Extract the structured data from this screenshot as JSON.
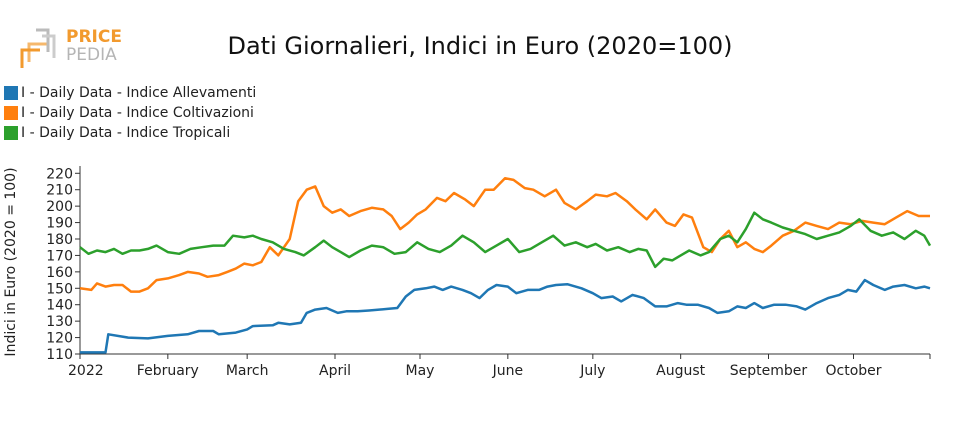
{
  "logo": {
    "line1": "PRICE",
    "line2": "PEDIA"
  },
  "chart_data": {
    "type": "line",
    "title": "Dati Giornalieri, Indici in Euro (2020=100)",
    "ylabel": "Indici in Euro (2020 = 100)",
    "xlabel": "",
    "ylim": [
      110,
      222
    ],
    "yticks": [
      110,
      120,
      130,
      140,
      150,
      160,
      170,
      180,
      190,
      200,
      210,
      220
    ],
    "xlim": [
      "2022-01-01",
      "2022-10-28"
    ],
    "xticks": [
      {
        "date": "2022-01-01",
        "label": "2022"
      },
      {
        "date": "2022-02-01",
        "label": "February"
      },
      {
        "date": "2022-03-01",
        "label": "March"
      },
      {
        "date": "2022-04-01",
        "label": "April"
      },
      {
        "date": "2022-05-01",
        "label": "May"
      },
      {
        "date": "2022-06-01",
        "label": "June"
      },
      {
        "date": "2022-07-01",
        "label": "July"
      },
      {
        "date": "2022-08-01",
        "label": "August"
      },
      {
        "date": "2022-09-01",
        "label": "September"
      },
      {
        "date": "2022-10-01",
        "label": "October"
      }
    ],
    "grid": false,
    "legend_position": "top-left",
    "series": [
      {
        "name": "I - Daily Data - Indice Allevamenti",
        "color": "#1f77b4",
        "points": [
          [
            "2022-01-01",
            111
          ],
          [
            "2022-01-10",
            111
          ],
          [
            "2022-01-11",
            122
          ],
          [
            "2022-01-18",
            120
          ],
          [
            "2022-01-25",
            119.5
          ],
          [
            "2022-02-01",
            121
          ],
          [
            "2022-02-08",
            122
          ],
          [
            "2022-02-12",
            124
          ],
          [
            "2022-02-17",
            124
          ],
          [
            "2022-02-19",
            122
          ],
          [
            "2022-02-25",
            123
          ],
          [
            "2022-03-01",
            125
          ],
          [
            "2022-03-03",
            127
          ],
          [
            "2022-03-10",
            127.5
          ],
          [
            "2022-03-12",
            129
          ],
          [
            "2022-03-16",
            128
          ],
          [
            "2022-03-20",
            129
          ],
          [
            "2022-03-22",
            135
          ],
          [
            "2022-03-25",
            137
          ],
          [
            "2022-03-29",
            138
          ],
          [
            "2022-04-02",
            135
          ],
          [
            "2022-04-05",
            136
          ],
          [
            "2022-04-09",
            136
          ],
          [
            "2022-04-13",
            136.5
          ],
          [
            "2022-04-20",
            137.5
          ],
          [
            "2022-04-23",
            138
          ],
          [
            "2022-04-26",
            145
          ],
          [
            "2022-04-29",
            149
          ],
          [
            "2022-05-03",
            150
          ],
          [
            "2022-05-06",
            151
          ],
          [
            "2022-05-09",
            149
          ],
          [
            "2022-05-12",
            151
          ],
          [
            "2022-05-16",
            149
          ],
          [
            "2022-05-19",
            147
          ],
          [
            "2022-05-22",
            144
          ],
          [
            "2022-05-25",
            149
          ],
          [
            "2022-05-28",
            152
          ],
          [
            "2022-06-01",
            151
          ],
          [
            "2022-06-04",
            147
          ],
          [
            "2022-06-08",
            149
          ],
          [
            "2022-06-12",
            149
          ],
          [
            "2022-06-15",
            151
          ],
          [
            "2022-06-18",
            152
          ],
          [
            "2022-06-22",
            152.5
          ],
          [
            "2022-06-27",
            150
          ],
          [
            "2022-07-01",
            147
          ],
          [
            "2022-07-04",
            144
          ],
          [
            "2022-07-08",
            145
          ],
          [
            "2022-07-11",
            142
          ],
          [
            "2022-07-15",
            146
          ],
          [
            "2022-07-19",
            144
          ],
          [
            "2022-07-23",
            139
          ],
          [
            "2022-07-27",
            139
          ],
          [
            "2022-07-31",
            141
          ],
          [
            "2022-08-03",
            140
          ],
          [
            "2022-08-07",
            140
          ],
          [
            "2022-08-11",
            138
          ],
          [
            "2022-08-14",
            135
          ],
          [
            "2022-08-18",
            136
          ],
          [
            "2022-08-21",
            139
          ],
          [
            "2022-08-24",
            138
          ],
          [
            "2022-08-27",
            141
          ],
          [
            "2022-08-30",
            138
          ],
          [
            "2022-09-03",
            140
          ],
          [
            "2022-09-07",
            140
          ],
          [
            "2022-09-11",
            139
          ],
          [
            "2022-09-14",
            137
          ],
          [
            "2022-09-18",
            141
          ],
          [
            "2022-09-22",
            144
          ],
          [
            "2022-09-26",
            146
          ],
          [
            "2022-09-29",
            149
          ],
          [
            "2022-10-02",
            148
          ],
          [
            "2022-10-05",
            155
          ],
          [
            "2022-10-08",
            152
          ],
          [
            "2022-10-12",
            149
          ],
          [
            "2022-10-15",
            151
          ],
          [
            "2022-10-19",
            152
          ],
          [
            "2022-10-23",
            150
          ],
          [
            "2022-10-26",
            151
          ],
          [
            "2022-10-28",
            150
          ]
        ]
      },
      {
        "name": "I - Daily Data - Indice Coltivazioni",
        "color": "#ff7f0e",
        "points": [
          [
            "2022-01-01",
            150
          ],
          [
            "2022-01-05",
            149
          ],
          [
            "2022-01-07",
            153
          ],
          [
            "2022-01-10",
            151
          ],
          [
            "2022-01-13",
            152
          ],
          [
            "2022-01-16",
            152
          ],
          [
            "2022-01-19",
            148
          ],
          [
            "2022-01-22",
            148
          ],
          [
            "2022-01-25",
            150
          ],
          [
            "2022-01-28",
            155
          ],
          [
            "2022-02-01",
            156
          ],
          [
            "2022-02-05",
            158
          ],
          [
            "2022-02-08",
            160
          ],
          [
            "2022-02-12",
            159
          ],
          [
            "2022-02-15",
            157
          ],
          [
            "2022-02-19",
            158
          ],
          [
            "2022-02-22",
            160
          ],
          [
            "2022-02-25",
            162
          ],
          [
            "2022-02-28",
            165
          ],
          [
            "2022-03-03",
            164
          ],
          [
            "2022-03-06",
            166
          ],
          [
            "2022-03-09",
            175
          ],
          [
            "2022-03-12",
            170
          ],
          [
            "2022-03-16",
            180
          ],
          [
            "2022-03-19",
            203
          ],
          [
            "2022-03-22",
            210
          ],
          [
            "2022-03-25",
            212
          ],
          [
            "2022-03-28",
            200
          ],
          [
            "2022-03-31",
            196
          ],
          [
            "2022-04-03",
            198
          ],
          [
            "2022-04-06",
            194
          ],
          [
            "2022-04-10",
            197
          ],
          [
            "2022-04-14",
            199
          ],
          [
            "2022-04-18",
            198
          ],
          [
            "2022-04-21",
            194
          ],
          [
            "2022-04-24",
            186
          ],
          [
            "2022-04-27",
            190
          ],
          [
            "2022-04-30",
            195
          ],
          [
            "2022-05-03",
            198
          ],
          [
            "2022-05-07",
            205
          ],
          [
            "2022-05-10",
            203
          ],
          [
            "2022-05-13",
            208
          ],
          [
            "2022-05-17",
            204
          ],
          [
            "2022-05-20",
            200
          ],
          [
            "2022-05-24",
            210
          ],
          [
            "2022-05-27",
            210
          ],
          [
            "2022-05-31",
            217
          ],
          [
            "2022-06-03",
            216
          ],
          [
            "2022-06-07",
            211
          ],
          [
            "2022-06-10",
            210
          ],
          [
            "2022-06-14",
            206
          ],
          [
            "2022-06-18",
            210
          ],
          [
            "2022-06-21",
            202
          ],
          [
            "2022-06-25",
            198
          ],
          [
            "2022-06-29",
            203
          ],
          [
            "2022-07-02",
            207
          ],
          [
            "2022-07-06",
            206
          ],
          [
            "2022-07-09",
            208
          ],
          [
            "2022-07-13",
            203
          ],
          [
            "2022-07-16",
            198
          ],
          [
            "2022-07-20",
            192
          ],
          [
            "2022-07-23",
            198
          ],
          [
            "2022-07-27",
            190
          ],
          [
            "2022-07-30",
            188
          ],
          [
            "2022-08-02",
            195
          ],
          [
            "2022-08-05",
            193
          ],
          [
            "2022-08-09",
            175
          ],
          [
            "2022-08-12",
            172
          ],
          [
            "2022-08-15",
            180
          ],
          [
            "2022-08-18",
            185
          ],
          [
            "2022-08-21",
            175
          ],
          [
            "2022-08-24",
            178
          ],
          [
            "2022-08-27",
            174
          ],
          [
            "2022-08-30",
            172
          ],
          [
            "2022-09-02",
            176
          ],
          [
            "2022-09-06",
            182
          ],
          [
            "2022-09-10",
            185
          ],
          [
            "2022-09-14",
            190
          ],
          [
            "2022-09-18",
            188
          ],
          [
            "2022-09-22",
            186
          ],
          [
            "2022-09-26",
            190
          ],
          [
            "2022-09-30",
            189
          ],
          [
            "2022-10-04",
            191
          ],
          [
            "2022-10-08",
            190
          ],
          [
            "2022-10-12",
            189
          ],
          [
            "2022-10-16",
            193
          ],
          [
            "2022-10-20",
            197
          ],
          [
            "2022-10-24",
            194
          ],
          [
            "2022-10-28",
            194
          ]
        ]
      },
      {
        "name": "I - Daily Data - Indice Tropicali",
        "color": "#2ca02c",
        "points": [
          [
            "2022-01-01",
            175
          ],
          [
            "2022-01-04",
            171
          ],
          [
            "2022-01-07",
            173
          ],
          [
            "2022-01-10",
            172
          ],
          [
            "2022-01-13",
            174
          ],
          [
            "2022-01-16",
            171
          ],
          [
            "2022-01-19",
            173
          ],
          [
            "2022-01-22",
            173
          ],
          [
            "2022-01-25",
            174
          ],
          [
            "2022-01-28",
            176
          ],
          [
            "2022-02-01",
            172
          ],
          [
            "2022-02-05",
            171
          ],
          [
            "2022-02-09",
            174
          ],
          [
            "2022-02-13",
            175
          ],
          [
            "2022-02-17",
            176
          ],
          [
            "2022-02-21",
            176
          ],
          [
            "2022-02-24",
            182
          ],
          [
            "2022-02-28",
            181
          ],
          [
            "2022-03-03",
            182
          ],
          [
            "2022-03-06",
            180
          ],
          [
            "2022-03-10",
            178
          ],
          [
            "2022-03-14",
            174
          ],
          [
            "2022-03-18",
            172
          ],
          [
            "2022-03-21",
            170
          ],
          [
            "2022-03-25",
            175
          ],
          [
            "2022-03-28",
            179
          ],
          [
            "2022-03-31",
            175
          ],
          [
            "2022-04-03",
            172
          ],
          [
            "2022-04-06",
            169
          ],
          [
            "2022-04-10",
            173
          ],
          [
            "2022-04-14",
            176
          ],
          [
            "2022-04-18",
            175
          ],
          [
            "2022-04-22",
            171
          ],
          [
            "2022-04-26",
            172
          ],
          [
            "2022-04-30",
            178
          ],
          [
            "2022-05-04",
            174
          ],
          [
            "2022-05-08",
            172
          ],
          [
            "2022-05-12",
            176
          ],
          [
            "2022-05-16",
            182
          ],
          [
            "2022-05-20",
            178
          ],
          [
            "2022-05-24",
            172
          ],
          [
            "2022-05-28",
            176
          ],
          [
            "2022-06-01",
            180
          ],
          [
            "2022-06-05",
            172
          ],
          [
            "2022-06-09",
            174
          ],
          [
            "2022-06-13",
            178
          ],
          [
            "2022-06-17",
            182
          ],
          [
            "2022-06-21",
            176
          ],
          [
            "2022-06-25",
            178
          ],
          [
            "2022-06-29",
            175
          ],
          [
            "2022-07-02",
            177
          ],
          [
            "2022-07-06",
            173
          ],
          [
            "2022-07-10",
            175
          ],
          [
            "2022-07-14",
            172
          ],
          [
            "2022-07-17",
            174
          ],
          [
            "2022-07-20",
            173
          ],
          [
            "2022-07-23",
            163
          ],
          [
            "2022-07-26",
            168
          ],
          [
            "2022-07-29",
            167
          ],
          [
            "2022-08-01",
            170
          ],
          [
            "2022-08-04",
            173
          ],
          [
            "2022-08-08",
            170
          ],
          [
            "2022-08-11",
            172
          ],
          [
            "2022-08-15",
            180
          ],
          [
            "2022-08-18",
            182
          ],
          [
            "2022-08-21",
            178
          ],
          [
            "2022-08-24",
            186
          ],
          [
            "2022-08-27",
            196
          ],
          [
            "2022-08-30",
            192
          ],
          [
            "2022-09-02",
            190
          ],
          [
            "2022-09-06",
            187
          ],
          [
            "2022-09-10",
            185
          ],
          [
            "2022-09-14",
            183
          ],
          [
            "2022-09-18",
            180
          ],
          [
            "2022-09-22",
            182
          ],
          [
            "2022-09-26",
            184
          ],
          [
            "2022-09-30",
            188
          ],
          [
            "2022-10-03",
            192
          ],
          [
            "2022-10-07",
            185
          ],
          [
            "2022-10-11",
            182
          ],
          [
            "2022-10-15",
            184
          ],
          [
            "2022-10-19",
            180
          ],
          [
            "2022-10-23",
            185
          ],
          [
            "2022-10-26",
            182
          ],
          [
            "2022-10-28",
            176
          ]
        ]
      }
    ]
  }
}
